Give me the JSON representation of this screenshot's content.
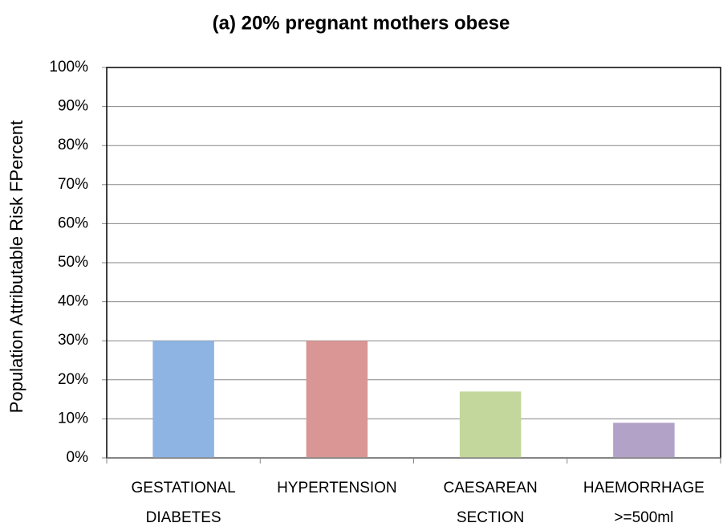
{
  "chart_data": {
    "type": "bar",
    "title": "(a) 20% pregnant mothers obese",
    "y_label": "Population Attributable Risk FPercent",
    "categories": [
      "GESTATIONAL DIABETES",
      "HYPERTENSION",
      "CAESAREAN SECTION",
      "HAEMORRHAGE >=500ml"
    ],
    "values": [
      30,
      30,
      17,
      9
    ],
    "colors": [
      "#8eb4e3",
      "#d99694",
      "#c3d69b",
      "#b3a2c7"
    ],
    "ylim": [
      0,
      100
    ],
    "yticks": [
      {
        "value": 0,
        "label": "0%"
      },
      {
        "value": 10,
        "label": "10%"
      },
      {
        "value": 20,
        "label": "20%"
      },
      {
        "value": 30,
        "label": "30%"
      },
      {
        "value": 40,
        "label": "40%"
      },
      {
        "value": 50,
        "label": "50%"
      },
      {
        "value": 60,
        "label": "60%"
      },
      {
        "value": 70,
        "label": "70%"
      },
      {
        "value": 80,
        "label": "80%"
      },
      {
        "value": 90,
        "label": "90%"
      },
      {
        "value": 100,
        "label": "100%"
      }
    ],
    "grid": true
  }
}
